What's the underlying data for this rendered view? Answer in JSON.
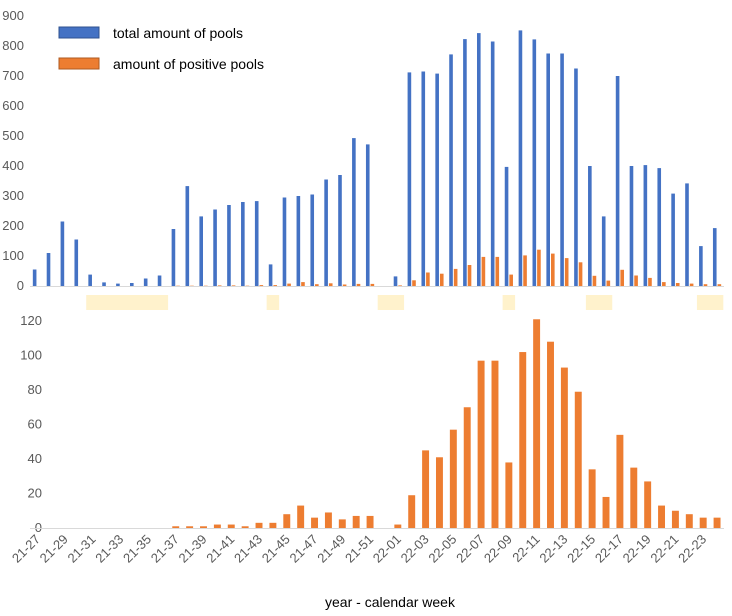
{
  "chart_data": [
    {
      "type": "bar",
      "title": "",
      "ylim": [
        0,
        900
      ],
      "yticks": [
        0,
        100,
        200,
        300,
        400,
        500,
        600,
        700,
        800,
        900
      ],
      "legend": {
        "placement": "top-left"
      },
      "categories": [
        "21-27",
        "21-28",
        "21-29",
        "21-30",
        "21-31",
        "21-32",
        "21-33",
        "21-34",
        "21-35",
        "21-36",
        "21-37",
        "21-38",
        "21-39",
        "21-40",
        "21-41",
        "21-42",
        "21-43",
        "21-44",
        "21-45",
        "21-46",
        "21-47",
        "21-48",
        "21-49",
        "21-50",
        "21-51",
        "21-52",
        "22-01",
        "22-02",
        "22-03",
        "22-04",
        "22-05",
        "22-06",
        "22-07",
        "22-08",
        "22-09",
        "22-10",
        "22-11",
        "22-12",
        "22-13",
        "22-14",
        "22-15",
        "22-16",
        "22-17",
        "22-18",
        "22-19",
        "22-20",
        "22-21",
        "22-22",
        "22-23",
        "22-24"
      ],
      "series": [
        {
          "name": "total amount of pools",
          "color": "#4472C4",
          "values": [
            55,
            110,
            215,
            155,
            38,
            12,
            8,
            10,
            25,
            35,
            190,
            333,
            232,
            255,
            270,
            280,
            283,
            72,
            295,
            300,
            305,
            355,
            370,
            493,
            472,
            0,
            32,
            712,
            715,
            708,
            772,
            823,
            843,
            815,
            397,
            852,
            822,
            775,
            775,
            725,
            400,
            232,
            700,
            400,
            403,
            393,
            308,
            342,
            133,
            193
          ]
        },
        {
          "name": "amount of positive pools",
          "color": "#ED7D31",
          "values": [
            0,
            0,
            0,
            0,
            0,
            0,
            0,
            0,
            0,
            0,
            1,
            1,
            1,
            2,
            2,
            1,
            3,
            3,
            8,
            13,
            6,
            9,
            5,
            7,
            7,
            0,
            2,
            19,
            45,
            41,
            57,
            70,
            97,
            97,
            38,
            102,
            121,
            108,
            93,
            79,
            34,
            18,
            54,
            35,
            27,
            13,
            10,
            8,
            6,
            6
          ]
        }
      ],
      "highlight_bands": [
        {
          "from": "21-31",
          "to": "21-36",
          "color": "#FFF2CC"
        },
        {
          "from": "21-44",
          "to": "21-44",
          "color": "#FFF2CC"
        },
        {
          "from": "21-52",
          "to": "22-01",
          "color": "#FFF2CC"
        },
        {
          "from": "22-09",
          "to": "22-09",
          "color": "#FFF2CC"
        },
        {
          "from": "22-15",
          "to": "22-16",
          "color": "#FFF2CC"
        },
        {
          "from": "22-23",
          "to": "22-24",
          "color": "#FFF2CC"
        }
      ]
    },
    {
      "type": "bar",
      "title": "",
      "ylim": [
        0,
        120
      ],
      "yticks": [
        0,
        20,
        40,
        60,
        80,
        100,
        120
      ],
      "xlabel": "year - calendar week",
      "categories_ref": "chart_data.0.categories",
      "tick_labels": [
        "21-27",
        "21-29",
        "21-31",
        "21-33",
        "21-35",
        "21-37",
        "21-39",
        "21-41",
        "21-43",
        "21-45",
        "21-47",
        "21-49",
        "21-51",
        "22-01",
        "22-03",
        "22-05",
        "22-07",
        "22-09",
        "22-11",
        "22-13",
        "22-15",
        "22-17",
        "22-19",
        "22-21",
        "22-23"
      ],
      "series": [
        {
          "name": "amount of positive pools",
          "color": "#ED7D31",
          "values": [
            0,
            0,
            0,
            0,
            0,
            0,
            0,
            0,
            0,
            0,
            1,
            1,
            1,
            2,
            2,
            1,
            3,
            3,
            8,
            13,
            6,
            9,
            5,
            7,
            7,
            0,
            2,
            19,
            45,
            41,
            57,
            70,
            97,
            97,
            38,
            102,
            121,
            108,
            93,
            79,
            34,
            18,
            54,
            35,
            27,
            13,
            10,
            8,
            6,
            6
          ]
        }
      ]
    }
  ]
}
